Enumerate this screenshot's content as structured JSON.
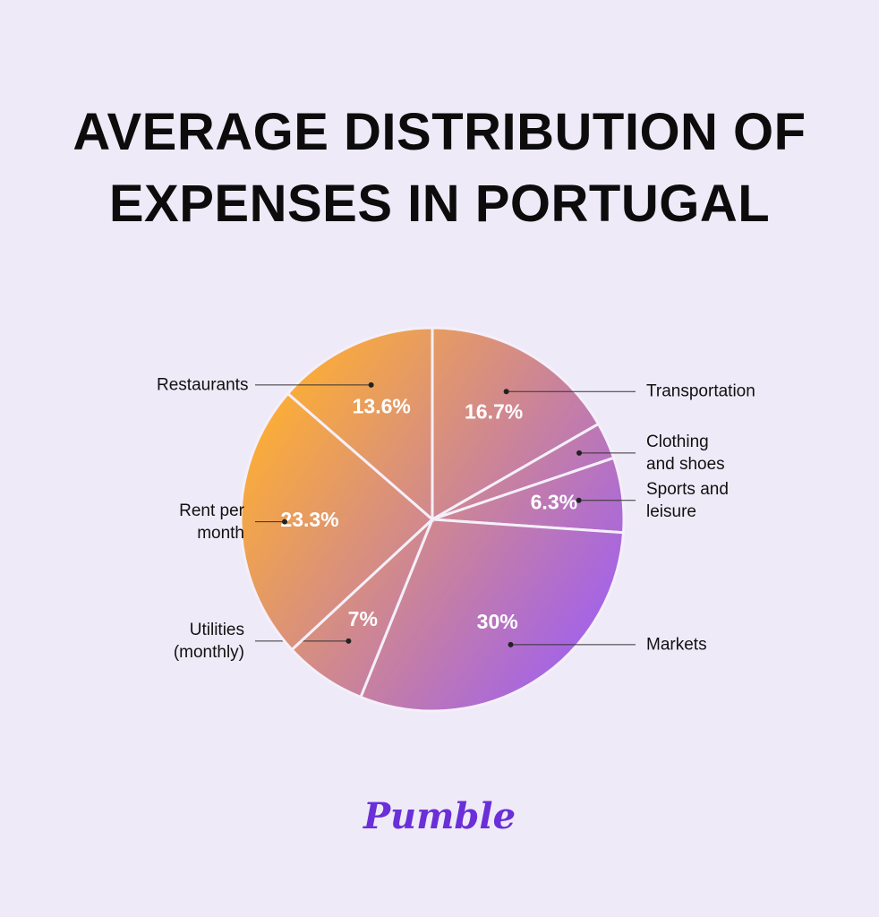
{
  "chart_data": {
    "type": "pie",
    "title": "AVERAGE DISTRIBUTION OF EXPENSES IN PORTUGAL",
    "categories": [
      "Transportation",
      "Clothing and shoes",
      "Sports and leisure",
      "Markets",
      "Utilities (monthly)",
      "Rent per month",
      "Restaurants"
    ],
    "values": [
      16.7,
      3.1,
      6.3,
      30,
      7,
      23.3,
      13.6
    ],
    "value_labels": [
      "16.7%",
      null,
      "6.3%",
      "30%",
      "7%",
      "23.3%",
      "13.6%"
    ],
    "gradient": [
      "#ffb030",
      "#9859ff"
    ]
  },
  "logo": "Pumble"
}
